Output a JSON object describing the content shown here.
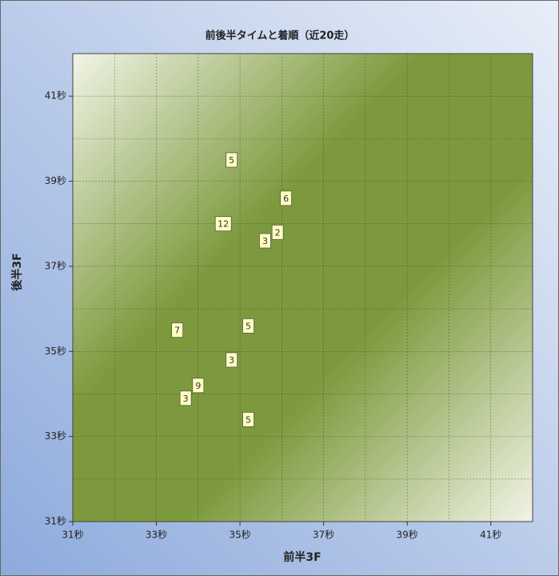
{
  "chart_data": {
    "type": "scatter",
    "title": "前後半タイムと着順（近20走）",
    "x_label": "前半3F",
    "y_label": "後半3F",
    "xlim": [
      31,
      42
    ],
    "ylim": [
      31,
      42
    ],
    "xticks": [
      {
        "value": 31,
        "label": "31秒"
      },
      {
        "value": 33,
        "label": "33秒"
      },
      {
        "value": 35,
        "label": "35秒"
      },
      {
        "value": 37,
        "label": "37秒"
      },
      {
        "value": 39,
        "label": "39秒"
      },
      {
        "value": 41,
        "label": "41秒"
      }
    ],
    "yticks": [
      {
        "value": 31,
        "label": "31秒"
      },
      {
        "value": 33,
        "label": "33秒"
      },
      {
        "value": 35,
        "label": "35秒"
      },
      {
        "value": 37,
        "label": "37秒"
      },
      {
        "value": 39,
        "label": "39秒"
      },
      {
        "value": 41,
        "label": "41秒"
      }
    ],
    "x_minor_grid": [
      32,
      34,
      36,
      38,
      40
    ],
    "y_minor_grid": [
      32,
      34,
      36,
      38,
      40
    ],
    "grid": true,
    "series": [
      {
        "color": "#ffffc0",
        "x": [
          34.8,
          36.1,
          34.6,
          35.9,
          35.6,
          33.5,
          35.2,
          34.8,
          34.0,
          33.7,
          35.2
        ],
        "values": [
          39.5,
          38.6,
          38.0,
          37.8,
          37.6,
          35.5,
          35.6,
          34.8,
          34.2,
          33.9,
          33.4
        ],
        "labels": [
          "5",
          "6",
          "12",
          "2",
          "3",
          "7",
          "5",
          "3",
          "9",
          "3",
          "5"
        ]
      }
    ]
  }
}
